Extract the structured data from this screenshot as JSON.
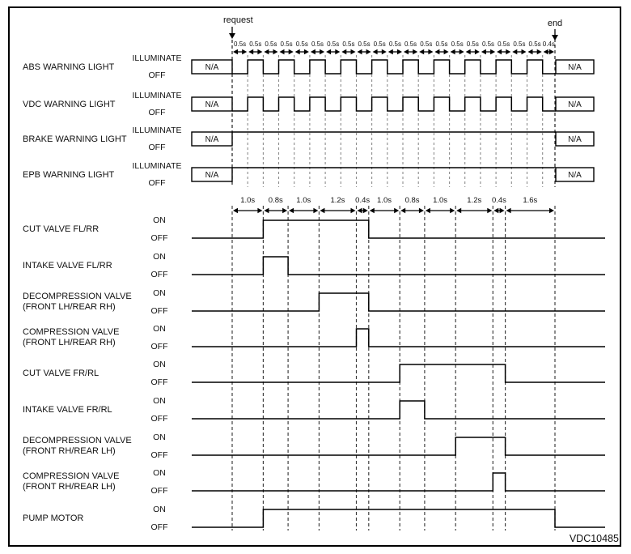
{
  "figure_code": "VDC10485",
  "markers": {
    "start": "request",
    "end": "end"
  },
  "na_label": "N/A",
  "colors": {
    "line": "#000000",
    "grid": "#8c8c8c",
    "grid_dark": "#3a3a3a",
    "text": "#111111",
    "background": "#ffffff"
  },
  "chart_data": {
    "type": "timing-diagram",
    "total_time_s": 10.4,
    "top_scale": {
      "segment_labels": [
        "0.5s",
        "0.5s",
        "0.5s",
        "0.5s",
        "0.5s",
        "0.5s",
        "0.5s",
        "0.5s",
        "0.5s",
        "0.5s",
        "0.5s",
        "0.5s",
        "0.5s",
        "0.5s",
        "0.5s",
        "0.5s",
        "0.5s",
        "0.5s",
        "0.5s",
        "0.5s",
        "0.4s"
      ],
      "segment_durations_s": [
        0.5,
        0.5,
        0.5,
        0.5,
        0.5,
        0.5,
        0.5,
        0.5,
        0.5,
        0.5,
        0.5,
        0.5,
        0.5,
        0.5,
        0.5,
        0.5,
        0.5,
        0.5,
        0.5,
        0.5,
        0.4
      ]
    },
    "bottom_scale": {
      "segment_labels": [
        "1.0s",
        "0.8s",
        "1.0s",
        "1.2s",
        "0.4s",
        "1.0s",
        "0.8s",
        "1.0s",
        "1.2s",
        "0.4s",
        "1.6s"
      ],
      "segment_durations_s": [
        1.0,
        0.8,
        1.0,
        1.2,
        0.4,
        1.0,
        0.8,
        1.0,
        1.2,
        0.4,
        1.6
      ]
    },
    "warning_lights": {
      "level_labels": [
        "ILLUMINATE",
        "OFF"
      ],
      "rows": [
        {
          "name": "ABS WARNING LIGHT",
          "na_before": "N/A",
          "na_after": "N/A",
          "pattern": "blink",
          "on_intervals_s": [
            [
              0.5,
              1.0
            ],
            [
              1.5,
              2.0
            ],
            [
              2.5,
              3.0
            ],
            [
              3.5,
              4.0
            ],
            [
              4.5,
              5.0
            ],
            [
              5.5,
              6.0
            ],
            [
              6.5,
              7.0
            ],
            [
              7.5,
              8.0
            ],
            [
              8.5,
              9.0
            ],
            [
              9.5,
              10.0
            ]
          ]
        },
        {
          "name": "VDC WARNING LIGHT",
          "na_before": "N/A",
          "na_after": "N/A",
          "pattern": "blink",
          "on_intervals_s": [
            [
              0.5,
              1.0
            ],
            [
              1.5,
              2.0
            ],
            [
              2.5,
              3.0
            ],
            [
              3.5,
              4.0
            ],
            [
              4.5,
              5.0
            ],
            [
              5.5,
              6.0
            ],
            [
              6.5,
              7.0
            ],
            [
              7.5,
              8.0
            ],
            [
              8.5,
              9.0
            ],
            [
              9.5,
              10.0
            ]
          ]
        },
        {
          "name": "BRAKE WARNING LIGHT",
          "na_before": "N/A",
          "na_after": "N/A",
          "pattern": "steady-illuminate",
          "on_intervals_s": []
        },
        {
          "name": "EPB WARNING LIGHT",
          "na_before": "N/A",
          "na_after": "N/A",
          "pattern": "steady-illuminate",
          "on_intervals_s": []
        }
      ]
    },
    "valves": {
      "level_labels": [
        "ON",
        "OFF"
      ],
      "rows": [
        {
          "name": "CUT VALVE FL/RR",
          "on_intervals_s": [
            [
              1.0,
              4.4
            ]
          ]
        },
        {
          "name": "INTAKE VALVE FL/RR",
          "on_intervals_s": [
            [
              1.0,
              1.8
            ]
          ]
        },
        {
          "name": "DECOMPRESSION VALVE",
          "name_line2": "(FRONT LH/REAR RH)",
          "on_intervals_s": [
            [
              2.8,
              4.4
            ]
          ]
        },
        {
          "name": "COMPRESSION VALVE",
          "name_line2": "(FRONT LH/REAR RH)",
          "on_intervals_s": [
            [
              4.0,
              4.4
            ]
          ]
        },
        {
          "name": "CUT VALVE FR/RL",
          "on_intervals_s": [
            [
              5.4,
              8.8
            ]
          ]
        },
        {
          "name": "INTAKE VALVE FR/RL",
          "on_intervals_s": [
            [
              5.4,
              6.2
            ]
          ]
        },
        {
          "name": "DECOMPRESSION VALVE",
          "name_line2": "(FRONT RH/REAR LH)",
          "on_intervals_s": [
            [
              7.2,
              8.8
            ]
          ]
        },
        {
          "name": "COMPRESSION VALVE",
          "name_line2": "(FRONT RH/REAR LH)",
          "on_intervals_s": [
            [
              8.4,
              8.8
            ]
          ]
        },
        {
          "name": "PUMP MOTOR",
          "on_intervals_s": [
            [
              1.0,
              10.4
            ]
          ]
        }
      ]
    }
  }
}
